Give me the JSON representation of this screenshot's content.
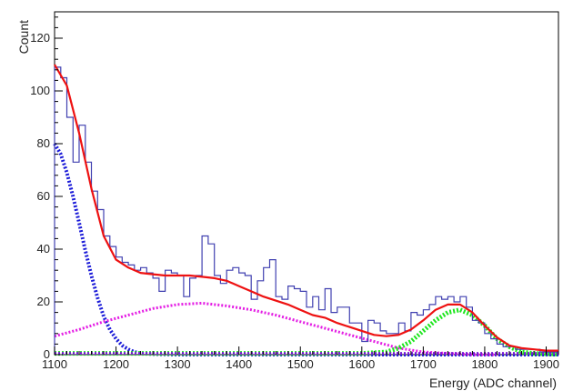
{
  "chart_data": {
    "type": "line",
    "xlabel": "Energy (ADC channel)",
    "ylabel": "Count",
    "xlim": [
      1100,
      1920
    ],
    "ylim": [
      0,
      130
    ],
    "x_ticks": [
      1100,
      1200,
      1300,
      1400,
      1500,
      1600,
      1700,
      1800,
      1900
    ],
    "y_ticks": [
      0,
      20,
      40,
      60,
      80,
      100,
      120
    ],
    "grid": false,
    "colors": {
      "histogram": "#4040b0",
      "total_fit": "#ee1111",
      "blue_component": "#1a1ad8",
      "magenta_component": "#e41ee4",
      "green_component": "#1ee61e",
      "purple_component": "#7a1ad6",
      "axis": "#000000"
    },
    "histogram": {
      "bin_width": 10,
      "bin_starts": [
        1100,
        1110,
        1120,
        1130,
        1140,
        1150,
        1160,
        1170,
        1180,
        1190,
        1200,
        1210,
        1220,
        1230,
        1240,
        1250,
        1260,
        1270,
        1280,
        1290,
        1300,
        1310,
        1320,
        1330,
        1340,
        1350,
        1360,
        1370,
        1380,
        1390,
        1400,
        1410,
        1420,
        1430,
        1440,
        1450,
        1460,
        1470,
        1480,
        1490,
        1500,
        1510,
        1520,
        1530,
        1540,
        1550,
        1560,
        1570,
        1580,
        1590,
        1600,
        1610,
        1620,
        1630,
        1640,
        1650,
        1660,
        1670,
        1680,
        1690,
        1700,
        1710,
        1720,
        1730,
        1740,
        1750,
        1760,
        1770,
        1780,
        1790,
        1800,
        1810,
        1820,
        1830,
        1840,
        1850,
        1860,
        1870,
        1880,
        1890,
        1900,
        1910
      ],
      "counts": [
        109,
        105,
        90,
        73,
        87,
        73,
        62,
        55,
        45,
        41,
        37,
        35,
        34,
        32,
        33,
        31,
        29,
        24,
        32,
        31,
        30,
        22,
        29,
        30,
        45,
        42,
        30,
        27,
        32,
        33,
        31,
        30,
        21,
        28,
        33,
        36,
        22,
        21,
        26,
        25,
        24,
        18,
        22,
        17,
        25,
        16,
        18,
        18,
        12,
        12,
        5,
        13,
        12,
        9,
        8,
        8,
        12,
        9,
        16,
        15,
        17,
        19,
        22,
        21,
        22,
        20,
        22,
        18,
        13,
        12,
        8,
        6,
        4,
        3,
        3,
        2,
        2,
        2,
        2,
        1,
        1,
        1
      ]
    },
    "series": [
      {
        "style": "solid",
        "x": [
          1100,
          1120,
          1140,
          1160,
          1180,
          1200,
          1220,
          1240,
          1260,
          1280,
          1300,
          1320,
          1340,
          1360,
          1380,
          1400,
          1420,
          1440,
          1460,
          1480,
          1500,
          1520,
          1540,
          1560,
          1580,
          1600,
          1620,
          1640,
          1660,
          1680,
          1700,
          1720,
          1740,
          1760,
          1780,
          1800,
          1820,
          1840,
          1860,
          1880,
          1900,
          1920
        ],
        "y": [
          110,
          102,
          84,
          63,
          45,
          36,
          33,
          31,
          30.5,
          30,
          30,
          30,
          29.5,
          29,
          28,
          26,
          24,
          22,
          20.5,
          19,
          17,
          15,
          14,
          12,
          10.5,
          9,
          7.5,
          7,
          7.5,
          9.5,
          13,
          17,
          19,
          19,
          16,
          11,
          6.5,
          3.5,
          2.5,
          2,
          1.5,
          1.5
        ]
      },
      {
        "style": "dotted",
        "x": [
          1100,
          1110,
          1120,
          1130,
          1140,
          1150,
          1160,
          1170,
          1180,
          1190,
          1200,
          1210,
          1220,
          1230,
          1240,
          1260,
          1300,
          1400,
          1500,
          1600,
          1700,
          1800,
          1920
        ],
        "y": [
          80,
          76,
          69,
          60,
          50,
          39.5,
          30,
          21.5,
          14.5,
          9.5,
          6,
          3.5,
          2,
          1,
          0.5,
          0.2,
          0,
          0,
          0,
          0,
          0,
          0,
          0
        ]
      },
      {
        "style": "dotted",
        "x": [
          1100,
          1140,
          1180,
          1220,
          1260,
          1300,
          1340,
          1380,
          1420,
          1460,
          1500,
          1540,
          1580,
          1620,
          1660,
          1700,
          1740,
          1780,
          1820
        ],
        "y": [
          7,
          9.5,
          12.5,
          15,
          17.5,
          19,
          19.5,
          18.5,
          17,
          15,
          12.5,
          10,
          7.5,
          5,
          2.5,
          1,
          0.5,
          0,
          0
        ]
      },
      {
        "style": "dotted",
        "x": [
          1100,
          1600,
          1640,
          1660,
          1680,
          1700,
          1720,
          1740,
          1760,
          1780,
          1800,
          1820,
          1840,
          1860,
          1880,
          1920
        ],
        "y": [
          0.5,
          0.5,
          1,
          2.5,
          5,
          9,
          13,
          16,
          17,
          15,
          11,
          6,
          3,
          1,
          0.5,
          0.2
        ]
      },
      {
        "style": "dotted",
        "x": [
          1100,
          1500,
          1920
        ],
        "y": [
          0.5,
          0.5,
          0.5
        ]
      }
    ]
  }
}
